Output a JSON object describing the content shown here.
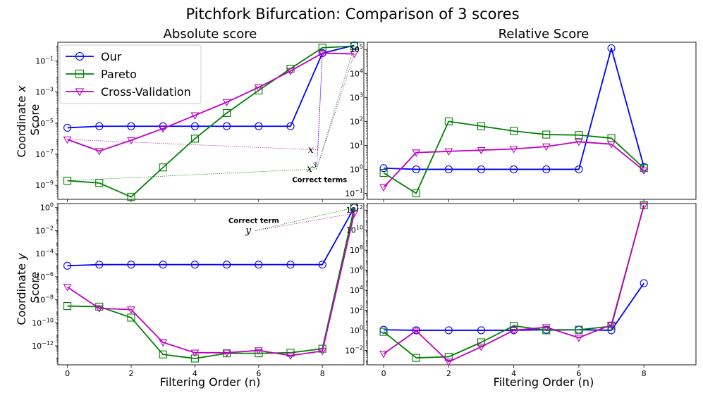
{
  "chart_data": {
    "suptitle": "Pitchfork Bifurcation: Comparison of 3 scores",
    "col_titles": [
      "Absolute score",
      "Relative Score"
    ],
    "row_labels": [
      [
        "Coordinate ",
        "x",
        "Score"
      ],
      [
        "Coordinate ",
        "y",
        "Score"
      ]
    ],
    "xlabel": "Filtering Order (n)",
    "legend": [
      {
        "name": "Our",
        "color": "#0000ff",
        "marker": "circle"
      },
      {
        "name": "Pareto",
        "color": "#008000",
        "marker": "square"
      },
      {
        "name": "Cross-Validation",
        "color": "#c000c0",
        "marker": "triangle"
      }
    ],
    "subplots": [
      {
        "id": "abs-x",
        "type": "line",
        "yscale": "log",
        "xlim": [
          -0.3,
          9.3
        ],
        "ylim_log10": [
          -9.9,
          0.2
        ],
        "xticks": [
          "0",
          "2",
          "4",
          "6",
          "8"
        ],
        "yticks": [
          {
            "e": -9,
            "label": "10",
            "exp": "−9"
          },
          {
            "e": -7,
            "label": "10",
            "exp": "−7"
          },
          {
            "e": -5,
            "label": "10",
            "exp": "−5"
          },
          {
            "e": -3,
            "label": "10",
            "exp": "−3"
          },
          {
            "e": -1,
            "label": "10",
            "exp": "−1"
          }
        ],
        "series": [
          {
            "name": "Our",
            "color": "#0000ff",
            "marker": "circle",
            "x": [
              0,
              1,
              2,
              3,
              4,
              5,
              6,
              7,
              8,
              9
            ],
            "log10": [
              -5.3,
              -5.2,
              -5.2,
              -5.2,
              -5.2,
              -5.2,
              -5.2,
              -5.2,
              -0.5,
              0.0
            ]
          },
          {
            "name": "Pareto",
            "color": "#008000",
            "marker": "square",
            "x": [
              0,
              1,
              2,
              3,
              4,
              5,
              6,
              7,
              8,
              9
            ],
            "log10": [
              -8.7,
              -8.85,
              -9.75,
              -7.85,
              -6.0,
              -4.35,
              -2.9,
              -1.5,
              -0.15,
              -0.05
            ]
          },
          {
            "name": "Cross-Validation",
            "color": "#c000c0",
            "marker": "triangle",
            "x": [
              0,
              1,
              2,
              3,
              4,
              5,
              6,
              7,
              8,
              9
            ],
            "log10": [
              -6.05,
              -6.8,
              -6.1,
              -5.35,
              -4.5,
              -3.65,
              -2.7,
              -1.65,
              -0.5,
              -0.55
            ]
          }
        ],
        "annotations": [
          {
            "text": "x",
            "italic": true,
            "x": 7.86,
            "log10": -6.72,
            "targets": [
              {
                "x": 0,
                "log10": -6.05,
                "color": "#c000c0"
              },
              {
                "x": 8,
                "log10": -0.5,
                "color": "#c000c0"
              }
            ]
          },
          {
            "text": "x",
            "sup": "3",
            "italic": true,
            "x": 7.82,
            "log10": -7.95,
            "targets": [
              {
                "x": 0,
                "log10": -8.7,
                "color": "#008000"
              },
              {
                "x": 8,
                "log10": -0.5,
                "color": "#0000ff"
              },
              {
                "x": 9,
                "log10": -0.55,
                "color": "#c000c0"
              },
              {
                "x": 9,
                "log10": -0.05,
                "color": "#008000"
              }
            ]
          },
          {
            "text": "Correct terms",
            "bold": true,
            "x": 7.05,
            "log10": -8.62,
            "targets": []
          }
        ]
      },
      {
        "id": "rel-x",
        "type": "line",
        "yscale": "log",
        "xlim": [
          -0.5,
          9.6
        ],
        "ylim_log10": [
          -1.25,
          5.3
        ],
        "xticks": [
          "0",
          "2",
          "4",
          "6",
          "8"
        ],
        "yticks": [
          {
            "e": -1,
            "label": "10",
            "exp": "−1"
          },
          {
            "e": 0,
            "label": "10",
            "exp": "0"
          },
          {
            "e": 1,
            "label": "10",
            "exp": "1"
          },
          {
            "e": 2,
            "label": "10",
            "exp": "2"
          },
          {
            "e": 3,
            "label": "10",
            "exp": "3"
          },
          {
            "e": 4,
            "label": "10",
            "exp": "4"
          },
          {
            "e": 5,
            "label": "10",
            "exp": "5"
          }
        ],
        "series": [
          {
            "name": "Our",
            "color": "#0000ff",
            "marker": "circle",
            "x": [
              0,
              1,
              2,
              3,
              4,
              5,
              6,
              7,
              8
            ],
            "log10": [
              0.05,
              0.0,
              0.0,
              0.0,
              0.0,
              0.0,
              0.0,
              5.05,
              0.1
            ]
          },
          {
            "name": "Pareto",
            "color": "#008000",
            "marker": "square",
            "x": [
              0,
              1,
              2,
              3,
              4,
              5,
              6,
              7,
              8
            ],
            "log10": [
              -0.15,
              -1.0,
              2.0,
              1.8,
              1.6,
              1.45,
              1.43,
              1.3,
              0.05
            ]
          },
          {
            "name": "Cross-Validation",
            "color": "#c000c0",
            "marker": "triangle",
            "x": [
              0,
              1,
              2,
              3,
              4,
              5,
              6,
              7,
              8
            ],
            "log10": [
              -0.75,
              0.7,
              0.75,
              0.8,
              0.85,
              0.95,
              1.15,
              1.05,
              -0.05
            ]
          }
        ],
        "annotations": []
      },
      {
        "id": "abs-y",
        "type": "line",
        "yscale": "log",
        "xlim": [
          -0.3,
          9.3
        ],
        "ylim_log10": [
          -13.65,
          0.35
        ],
        "xticks": [
          "0",
          "2",
          "4",
          "6",
          "8"
        ],
        "yticks": [
          {
            "e": -12,
            "label": "10",
            "exp": "−12"
          },
          {
            "e": -10,
            "label": "10",
            "exp": "−10"
          },
          {
            "e": -8,
            "label": "10",
            "exp": "−8"
          },
          {
            "e": -6,
            "label": "10",
            "exp": "−6"
          },
          {
            "e": -4,
            "label": "10",
            "exp": "−4"
          },
          {
            "e": -2,
            "label": "10",
            "exp": "−2"
          },
          {
            "e": 0,
            "label": "10",
            "exp": "0"
          }
        ],
        "series": [
          {
            "name": "Our",
            "color": "#0000ff",
            "marker": "circle",
            "x": [
              0,
              1,
              2,
              3,
              4,
              5,
              6,
              7,
              8,
              9
            ],
            "log10": [
              -5.05,
              -4.95,
              -4.95,
              -4.95,
              -4.95,
              -4.95,
              -4.95,
              -4.95,
              -4.95,
              0.0
            ]
          },
          {
            "name": "Pareto",
            "color": "#008000",
            "marker": "square",
            "x": [
              0,
              1,
              2,
              3,
              4,
              5,
              6,
              7,
              8,
              9
            ],
            "log10": [
              -8.55,
              -8.6,
              -9.55,
              -12.75,
              -13.1,
              -12.65,
              -12.65,
              -12.6,
              -12.25,
              0.0
            ]
          },
          {
            "name": "Cross-Validation",
            "color": "#c000c0",
            "marker": "triangle",
            "x": [
              0,
              1,
              2,
              3,
              4,
              5,
              6,
              7,
              8,
              9
            ],
            "log10": [
              -6.9,
              -8.75,
              -8.85,
              -11.7,
              -12.6,
              -12.6,
              -12.4,
              -12.85,
              -12.45,
              -0.5
            ]
          }
        ],
        "annotations": [
          {
            "text": "y",
            "italic": true,
            "x": 5.9,
            "log10": -2.0,
            "targets": [
              {
                "x": 9,
                "log10": 0.0,
                "color": "#008000"
              },
              {
                "x": 9,
                "log10": -0.5,
                "color": "#c000c0"
              }
            ]
          },
          {
            "text": "Correct term",
            "bold": true,
            "x": 5.05,
            "log10": -1.1,
            "targets": []
          }
        ]
      },
      {
        "id": "rel-y",
        "type": "line",
        "yscale": "log",
        "xlim": [
          -0.5,
          9.6
        ],
        "ylim_log10": [
          -3.45,
          12.65
        ],
        "xticks": [
          "0",
          "2",
          "4",
          "6",
          "8"
        ],
        "yticks": [
          {
            "e": -2,
            "label": "10",
            "exp": "−2"
          },
          {
            "e": 0,
            "label": "10",
            "exp": "0"
          },
          {
            "e": 2,
            "label": "10",
            "exp": "2"
          },
          {
            "e": 4,
            "label": "10",
            "exp": "4"
          },
          {
            "e": 6,
            "label": "10",
            "exp": "6"
          },
          {
            "e": 8,
            "label": "10",
            "exp": "8"
          },
          {
            "e": 10,
            "label": "10",
            "exp": "10"
          },
          {
            "e": 12,
            "label": "10",
            "exp": "12"
          }
        ],
        "series": [
          {
            "name": "Our",
            "color": "#0000ff",
            "marker": "circle",
            "x": [
              0,
              1,
              2,
              3,
              4,
              5,
              6,
              7,
              8
            ],
            "log10": [
              0.05,
              0.0,
              0.0,
              0.0,
              0.0,
              0.05,
              0.05,
              0.0,
              4.7
            ]
          },
          {
            "name": "Pareto",
            "color": "#008000",
            "marker": "square",
            "x": [
              0,
              1,
              2,
              3,
              4,
              5,
              6,
              7,
              8
            ],
            "log10": [
              -0.15,
              -2.75,
              -2.65,
              -1.2,
              0.45,
              0.0,
              0.05,
              0.4,
              12.5
            ]
          },
          {
            "name": "Cross-Validation",
            "color": "#c000c0",
            "marker": "triangle",
            "x": [
              0,
              1,
              2,
              3,
              4,
              5,
              6,
              7,
              8
            ],
            "log10": [
              -2.35,
              -0.05,
              -3.15,
              -1.65,
              0.0,
              0.3,
              -0.75,
              0.55,
              12.45
            ]
          }
        ],
        "annotations": []
      }
    ]
  }
}
